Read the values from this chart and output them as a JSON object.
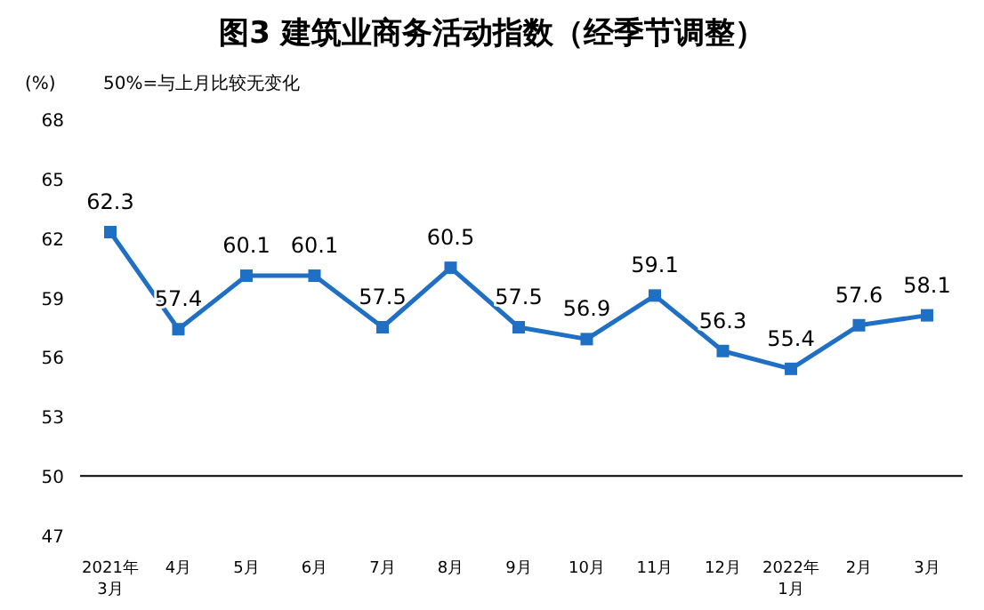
{
  "chart_data": {
    "type": "line",
    "title": "图3 建筑业商务活动指数（经季节调整）",
    "ylabel": "(%)",
    "annotations": [
      "50%=与上月比较无变化"
    ],
    "categories": [
      "2021年\n3月",
      "4月",
      "5月",
      "6月",
      "7月",
      "8月",
      "9月",
      "10月",
      "11月",
      "12月",
      "2022年\n1月",
      "2月",
      "3月"
    ],
    "series": [
      {
        "color": "#1f6fc4",
        "values": [
          62.3,
          57.4,
          60.1,
          60.1,
          57.5,
          60.5,
          57.5,
          56.9,
          59.1,
          56.3,
          55.4,
          57.6,
          58.1
        ]
      }
    ],
    "ylim": [
      47,
      68
    ],
    "yticks": [
      47,
      50,
      53,
      56,
      59,
      62,
      65,
      68
    ],
    "ref_lines": [
      {
        "axis": "y",
        "value": 50,
        "color": "#000000"
      }
    ],
    "data_labels": true,
    "marker": "square",
    "line_style": "solid",
    "grid": false
  }
}
